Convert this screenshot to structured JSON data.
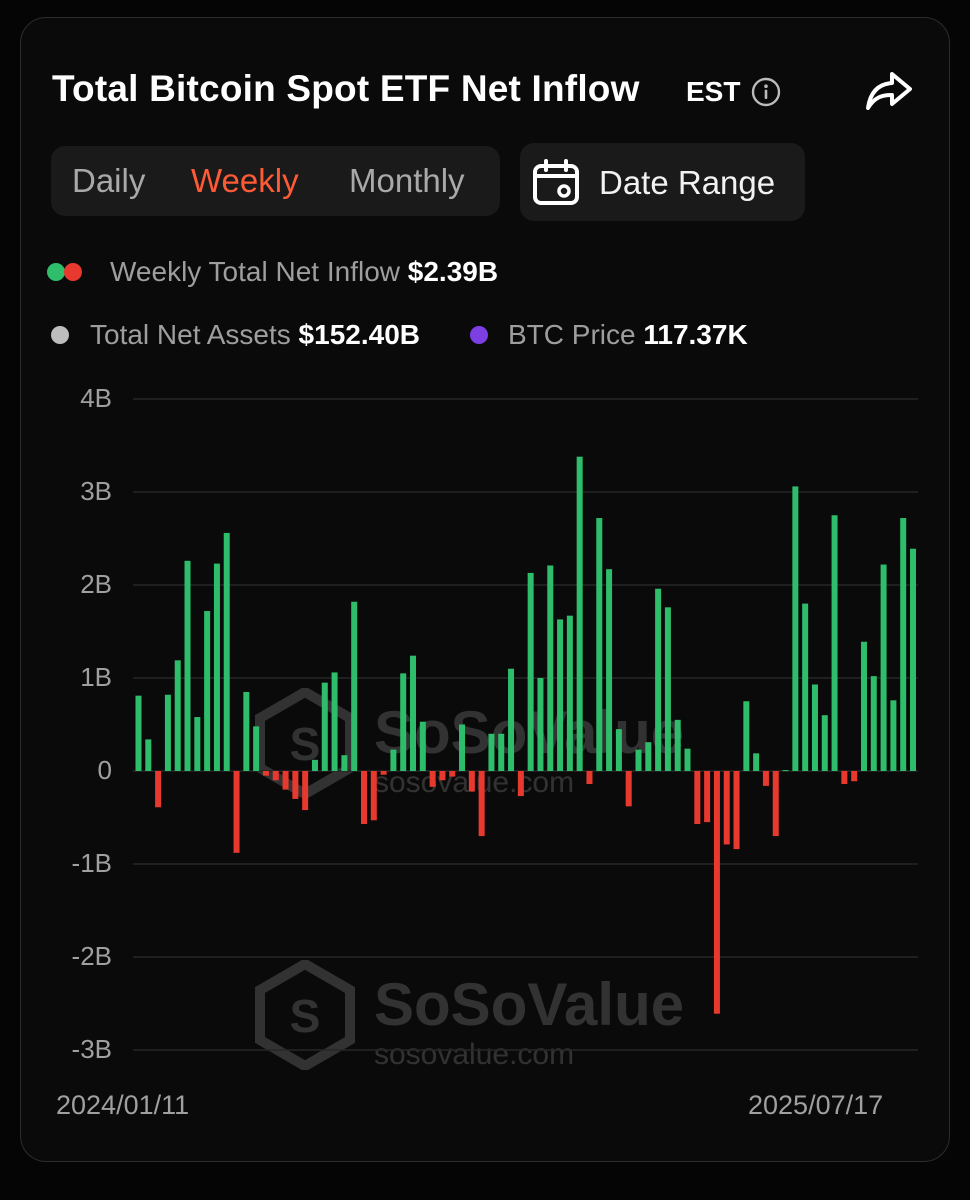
{
  "header": {
    "title": "Total Bitcoin Spot ETF Net Inflow",
    "timezone": "EST"
  },
  "tabs": [
    {
      "label": "Daily",
      "active": false
    },
    {
      "label": "Weekly",
      "active": true
    },
    {
      "label": "Monthly",
      "active": false
    }
  ],
  "date_range_label": "Date Range",
  "legend": {
    "inflow_label": "Weekly Total Net Inflow",
    "inflow_value": "$2.39B",
    "assets_label": "Total Net Assets",
    "assets_value": "$152.40B",
    "price_label": "BTC Price",
    "price_value": "117.37K"
  },
  "watermark": {
    "name": "SoSoValue",
    "url": "sosovalue.com"
  },
  "colors": {
    "positive": "#2ebd6b",
    "negative": "#e8392f",
    "accent": "#ff5a36",
    "assets_dot": "#bdbdbd",
    "price_dot": "#7b3fe4"
  },
  "chart_data": {
    "type": "bar",
    "x_start_label": "2024/01/11",
    "x_end_label": "2025/07/17",
    "ylim": [
      -3,
      4
    ],
    "yticks": [
      {
        "value": 4,
        "label": "4B"
      },
      {
        "value": 3,
        "label": "3B"
      },
      {
        "value": 2,
        "label": "2B"
      },
      {
        "value": 1,
        "label": "1B"
      },
      {
        "value": 0,
        "label": "0"
      },
      {
        "value": -1,
        "label": "-1B"
      },
      {
        "value": -2,
        "label": "-2B"
      },
      {
        "value": -3,
        "label": "-3B"
      }
    ],
    "unit": "B",
    "grid": true,
    "values": [
      0.81,
      0.34,
      -0.39,
      0.82,
      1.19,
      2.26,
      0.58,
      1.72,
      2.23,
      2.56,
      -0.88,
      0.85,
      0.48,
      -0.05,
      -0.1,
      -0.2,
      -0.3,
      -0.42,
      0.12,
      0.95,
      1.06,
      0.17,
      1.82,
      -0.57,
      -0.53,
      -0.04,
      0.23,
      1.05,
      1.24,
      0.53,
      -0.17,
      -0.1,
      -0.06,
      0.5,
      -0.22,
      -0.7,
      0.4,
      0.4,
      1.1,
      -0.27,
      2.13,
      1.0,
      2.21,
      1.63,
      1.67,
      3.38,
      -0.14,
      2.72,
      2.17,
      0.45,
      -0.38,
      0.23,
      0.31,
      1.96,
      1.76,
      0.55,
      0.24,
      -0.57,
      -0.55,
      -2.61,
      -0.79,
      -0.84,
      0.75,
      0.19,
      -0.16,
      -0.7,
      0.01,
      3.06,
      1.8,
      0.93,
      0.6,
      2.75,
      -0.14,
      -0.11,
      1.39,
      1.02,
      2.22,
      0.76,
      2.72,
      2.39
    ]
  }
}
